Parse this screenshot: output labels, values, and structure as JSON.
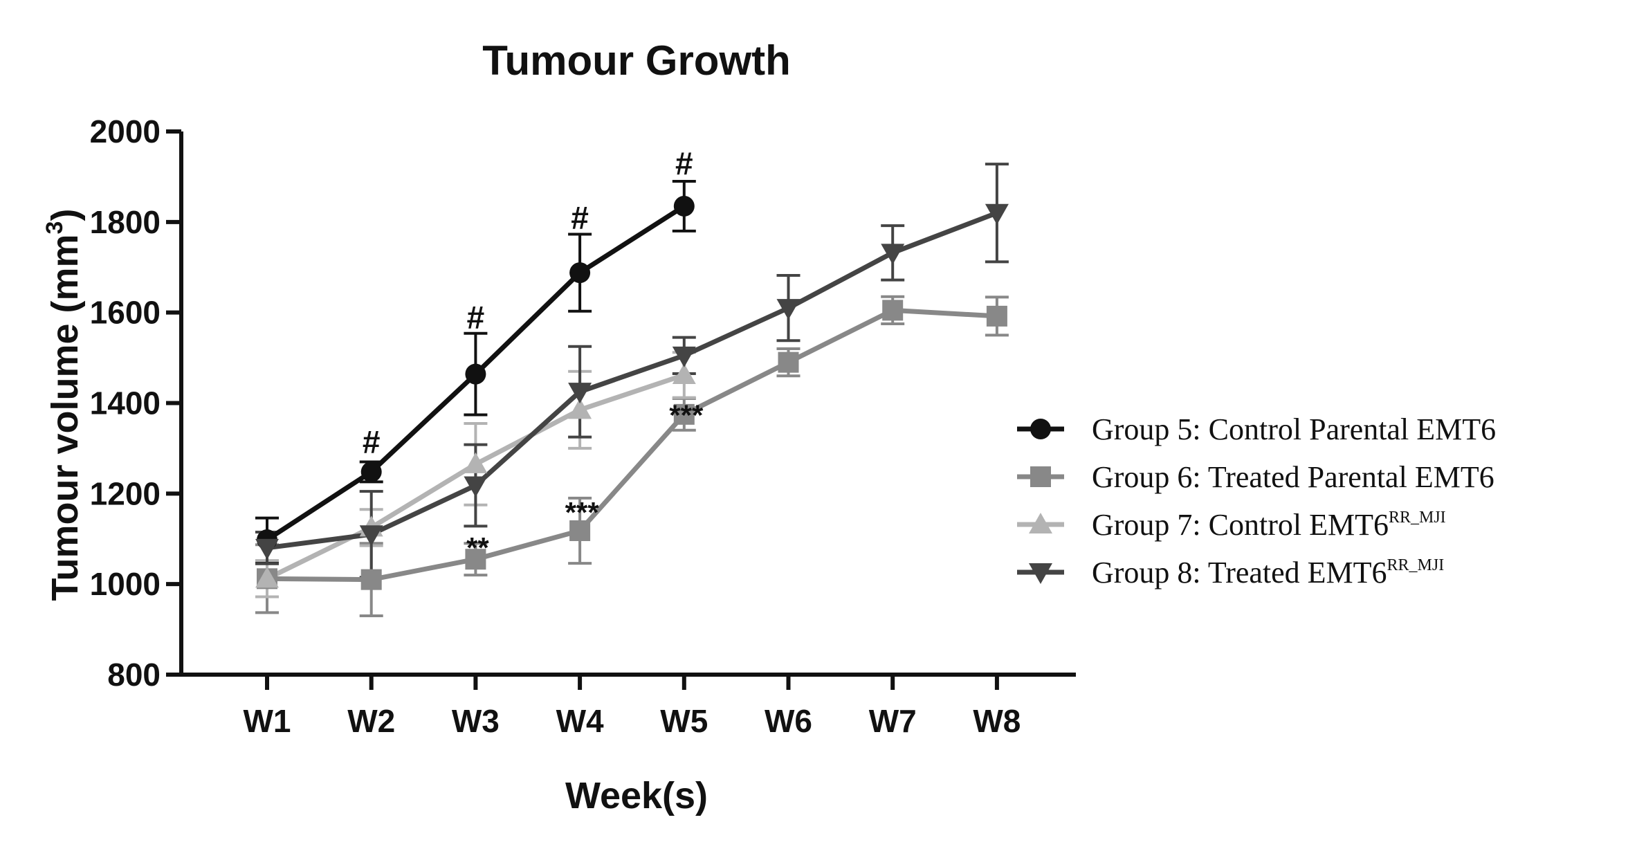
{
  "chart_data": {
    "type": "line",
    "title": "Tumour Growth",
    "xlabel": "Week(s)",
    "ylabel": "Tumour volume (mm",
    "ylabel_superscript": "3",
    "ylabel_suffix": ")",
    "categories": [
      "W1",
      "W2",
      "W3",
      "W4",
      "W5",
      "W6",
      "W7",
      "W8"
    ],
    "ylim": [
      800,
      2000
    ],
    "yticks": [
      800,
      1000,
      1200,
      1400,
      1600,
      1800,
      2000
    ],
    "series": [
      {
        "name": "Group 5: Control Parental EMT6",
        "legend_main": "Group 5: Control Parental EMT6",
        "legend_sup": "",
        "color": "#111111",
        "marker": "circle",
        "values": [
          1098,
          1248,
          1464,
          1688,
          1835,
          null,
          null,
          null
        ],
        "errors": [
          48,
          22,
          90,
          85,
          55,
          null,
          null,
          null
        ]
      },
      {
        "name": "Group 6: Treated Parental EMT6",
        "legend_main": "Group 6: Treated Parental EMT6",
        "legend_sup": "",
        "color": "#888888",
        "marker": "square",
        "values": [
          1012,
          1010,
          1055,
          1118,
          1375,
          1490,
          1605,
          1592
        ],
        "errors": [
          75,
          80,
          35,
          72,
          35,
          30,
          30,
          42
        ]
      },
      {
        "name": "Group 7: Control EMT6RR_MJI",
        "legend_main": "Group 7: Control EMT6",
        "legend_sup": "RR_MJI",
        "color": "#b3b3b3",
        "marker": "triangle-up",
        "values": [
          1012,
          1125,
          1265,
          1385,
          1462,
          null,
          null,
          null
        ],
        "errors": [
          40,
          40,
          90,
          85,
          50,
          null,
          null,
          null
        ]
      },
      {
        "name": "Group 8: Treated EMT6RR_MJI",
        "legend_main": "Group 8: Treated EMT6",
        "legend_sup": "RR_MJI",
        "color": "#444444",
        "marker": "triangle-down",
        "values": [
          1080,
          1110,
          1218,
          1425,
          1505,
          1610,
          1732,
          1820
        ],
        "errors": [
          35,
          95,
          90,
          100,
          40,
          72,
          60,
          108
        ]
      }
    ],
    "annotations": [
      {
        "category": "W2",
        "y": 1290,
        "text": "#"
      },
      {
        "category": "W3",
        "y": 1565,
        "text": "#"
      },
      {
        "category": "W4",
        "y": 1785,
        "text": "#"
      },
      {
        "category": "W5",
        "y": 1905,
        "text": "#"
      },
      {
        "category": "W3",
        "y": 1092,
        "text": "**"
      },
      {
        "category": "W4",
        "y": 1170,
        "text": "***"
      },
      {
        "category": "W5",
        "y": 1385,
        "text": "***"
      }
    ],
    "legend_position": "right"
  }
}
